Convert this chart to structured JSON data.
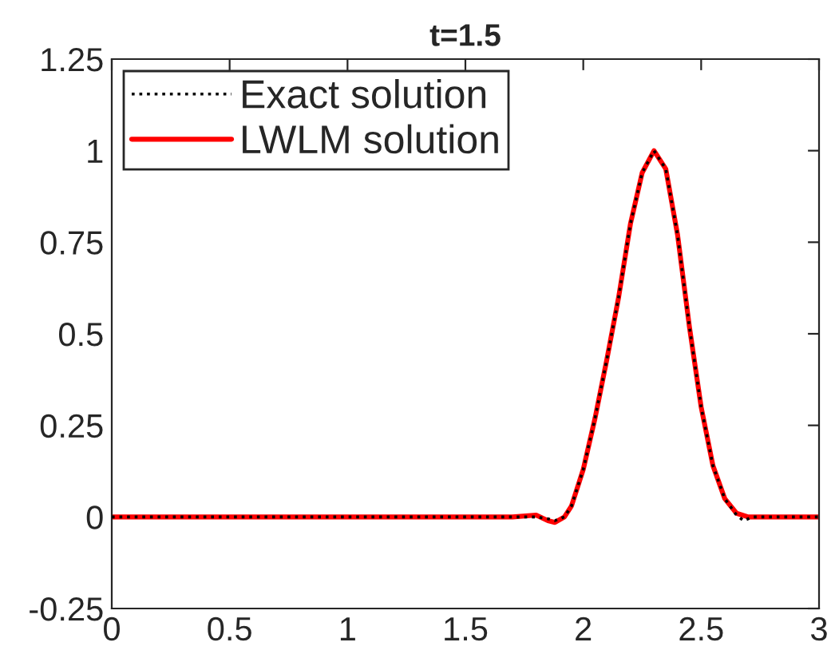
{
  "chart_data": {
    "type": "line",
    "title": "t=1.5",
    "xlim": [
      0,
      3
    ],
    "ylim": [
      -0.25,
      1.25
    ],
    "xticks": [
      0,
      0.5,
      1,
      1.5,
      2,
      2.5,
      3
    ],
    "yticks": [
      -0.25,
      0,
      0.25,
      0.5,
      0.75,
      1,
      1.25
    ],
    "grid": false,
    "legend": "top left",
    "series": [
      {
        "name": "Exact solution",
        "color": "#000000",
        "line_style": "dotted",
        "x": [
          0,
          1.7,
          1.8,
          1.85,
          1.88,
          1.92,
          1.95,
          2.0,
          2.05,
          2.1,
          2.15,
          2.2,
          2.25,
          2.3,
          2.35,
          2.4,
          2.45,
          2.5,
          2.55,
          2.6,
          2.65,
          2.68,
          2.72,
          3
        ],
        "values": [
          0,
          0,
          0,
          -0.005,
          -0.01,
          0,
          0.03,
          0.13,
          0.27,
          0.43,
          0.6,
          0.8,
          0.94,
          1.0,
          0.95,
          0.77,
          0.52,
          0.3,
          0.14,
          0.05,
          0.005,
          -0.01,
          0,
          0
        ]
      },
      {
        "name": "LWLM solution",
        "color": "#ff0000",
        "line_style": "solid",
        "x": [
          0,
          1.7,
          1.8,
          1.85,
          1.88,
          1.92,
          1.95,
          2.0,
          2.05,
          2.1,
          2.15,
          2.2,
          2.25,
          2.3,
          2.35,
          2.4,
          2.45,
          2.5,
          2.55,
          2.6,
          2.65,
          2.7,
          3
        ],
        "values": [
          0,
          0,
          0.005,
          -0.01,
          -0.015,
          0,
          0.03,
          0.13,
          0.27,
          0.43,
          0.6,
          0.8,
          0.94,
          1.0,
          0.95,
          0.77,
          0.52,
          0.3,
          0.14,
          0.05,
          0.01,
          0,
          0
        ]
      }
    ]
  }
}
